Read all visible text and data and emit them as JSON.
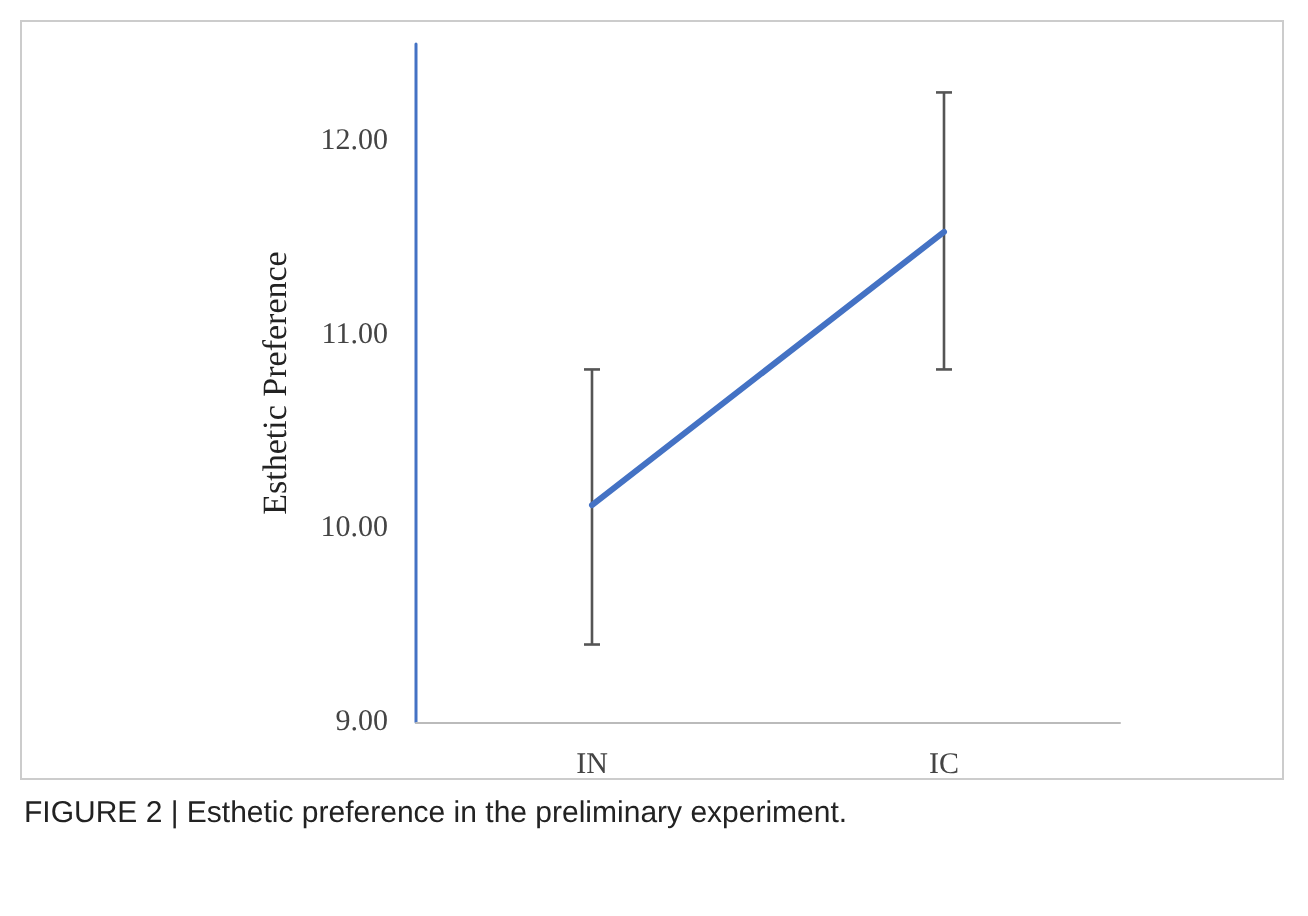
{
  "chart_data": {
    "type": "line",
    "ylabel": "Esthetic Preference",
    "categories": [
      "IN",
      "IC"
    ],
    "series": [
      {
        "color": "#4472c4",
        "values": [
          10.12,
          11.53
        ],
        "errors": [
          [
            9.4,
            10.82
          ],
          [
            10.82,
            12.25
          ]
        ]
      }
    ],
    "ylim": [
      9,
      12.5
    ],
    "yticks": [
      {
        "value": 9,
        "label": "9.00"
      },
      {
        "value": 10,
        "label": "10.00"
      },
      {
        "value": 11,
        "label": "11.00"
      },
      {
        "value": 12,
        "label": "12.00"
      }
    ],
    "grid": false,
    "marker": "none",
    "line_style": "solid",
    "annotations": [
      "FIGURE 2 | Esthetic preference in the preliminary experiment."
    ]
  }
}
